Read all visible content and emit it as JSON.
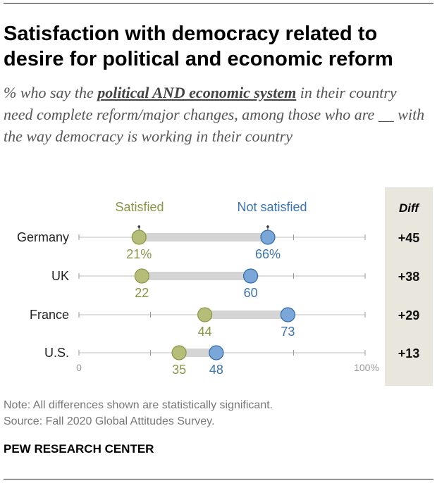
{
  "header": {
    "title": "Satisfaction with democracy related to desire for political and economic reform",
    "subtitle_pre": "% who say the ",
    "subtitle_em": "political AND economic system",
    "subtitle_post": " in their country need complete reform/major changes, among those who are __ with the way democracy is working in their country"
  },
  "chart_data": {
    "type": "dot-plot",
    "title": "Satisfaction with democracy related to desire for political and economic reform",
    "xlim": [
      0,
      100
    ],
    "axis_labels": {
      "min": "0",
      "max": "100%"
    },
    "diff_header": "Diff",
    "series": [
      {
        "name": "Satisfied",
        "color": "#b5bd79",
        "stroke": "#8c9546",
        "label_color": "#8c9546"
      },
      {
        "name": "Not satisfied",
        "color": "#7aa7d8",
        "stroke": "#2f6aa8",
        "label_color": "#3a73b0"
      }
    ],
    "categories": [
      "Germany",
      "UK",
      "France",
      "U.S."
    ],
    "rows": [
      {
        "country": "Germany",
        "satisfied": 21,
        "not_satisfied": 66,
        "satisfied_label": "21%",
        "not_satisfied_label": "66%",
        "diff": "+45"
      },
      {
        "country": "UK",
        "satisfied": 22,
        "not_satisfied": 60,
        "satisfied_label": "22",
        "not_satisfied_label": "60",
        "diff": "+38"
      },
      {
        "country": "France",
        "satisfied": 44,
        "not_satisfied": 73,
        "satisfied_label": "44",
        "not_satisfied_label": "73",
        "diff": "+29"
      },
      {
        "country": "U.S.",
        "satisfied": 35,
        "not_satisfied": 48,
        "satisfied_label": "35",
        "not_satisfied_label": "48",
        "diff": "+13"
      }
    ]
  },
  "footer": {
    "note": "Note: All differences shown are statistically significant.",
    "source": "Source: Fall 2020 Global Attitudes Survey.",
    "org": "PEW RESEARCH CENTER"
  }
}
